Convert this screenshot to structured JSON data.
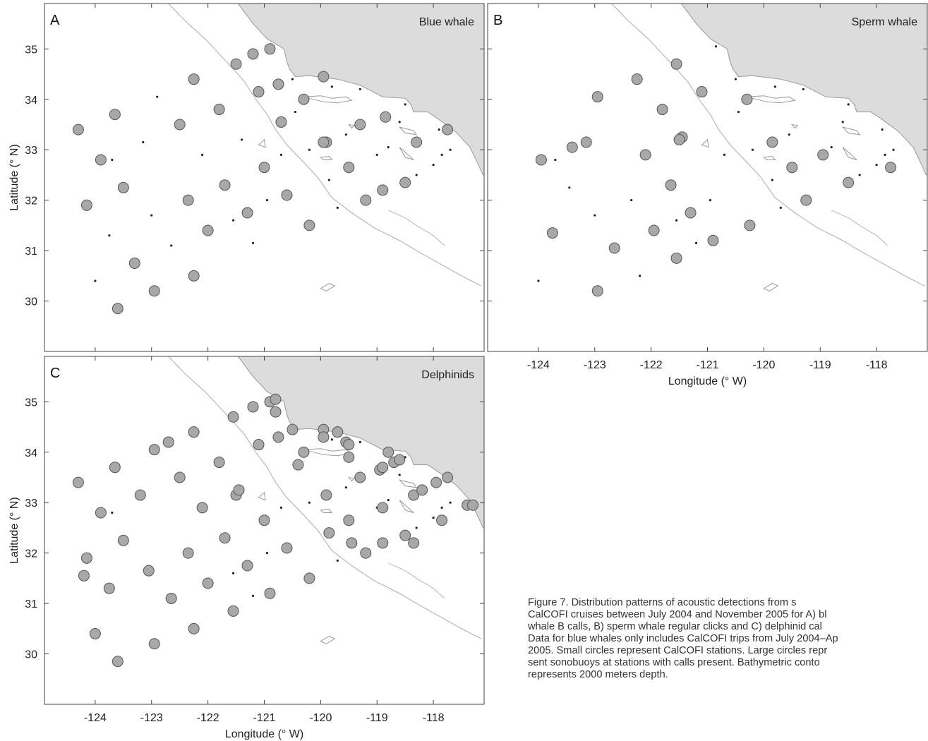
{
  "figure": {
    "caption_lines": [
      "Figure 7.   Distribution patterns of acoustic detections from s",
      "CalCOFI cruises between July 2004 and November 2005 for A) bl",
      "whale B calls, B) sperm whale regular clicks and C) delphinid cal",
      "Data for blue whales only includes CalCOFI trips from July 2004–Ap",
      "2005. Small circles represent CalCOFI stations. Large circles repr",
      "sent sonobuoys at stations with calls present. Bathymetric conto",
      "represents 2000 meters depth."
    ]
  },
  "axes": {
    "lon_range": [
      -124.9,
      -117.1
    ],
    "lat_range": [
      29.0,
      35.9
    ],
    "lon_ticks": [
      -124,
      -123,
      -122,
      -121,
      -120,
      -119,
      -118
    ],
    "lat_ticks": [
      30,
      31,
      32,
      33,
      34,
      35
    ],
    "xlabel": "Longitude (° W)",
    "ylabel": "Latitude (° N)"
  },
  "colors": {
    "land": "#dcdcdc",
    "coast": "#9a9a9a",
    "contour": "#b8b8b8",
    "detection_fill": "#a8a8a8",
    "detection_stroke": "#555555",
    "station": "#222222"
  },
  "stations": [
    [
      -124.0,
      30.4
    ],
    [
      -123.75,
      31.3
    ],
    [
      -123.45,
      32.25
    ],
    [
      -123.15,
      33.15
    ],
    [
      -122.9,
      34.05
    ],
    [
      -122.65,
      31.1
    ],
    [
      -122.35,
      32.0
    ],
    [
      -122.1,
      32.9
    ],
    [
      -121.8,
      33.8
    ],
    [
      -121.2,
      31.15
    ],
    [
      -120.95,
      32.0
    ],
    [
      -120.7,
      32.9
    ],
    [
      -120.45,
      33.75
    ],
    [
      -119.85,
      32.4
    ],
    [
      -119.55,
      33.3
    ],
    [
      -119.0,
      32.9
    ],
    [
      -118.6,
      33.55
    ],
    [
      -118.3,
      32.5
    ],
    [
      -118.0,
      32.7
    ],
    [
      -117.7,
      33.0
    ],
    [
      -117.9,
      33.4
    ],
    [
      -120.5,
      34.4
    ],
    [
      -119.8,
      34.25
    ],
    [
      -119.3,
      34.2
    ],
    [
      -118.5,
      33.9
    ],
    [
      -121.55,
      31.6
    ],
    [
      -122.2,
      30.5
    ],
    [
      -119.7,
      31.85
    ],
    [
      -120.85,
      35.05
    ],
    [
      -123.0,
      31.7
    ],
    [
      -123.7,
      32.8
    ],
    [
      -121.4,
      33.2
    ],
    [
      -118.8,
      33.05
    ],
    [
      -120.2,
      33.0
    ],
    [
      -117.85,
      32.9
    ]
  ],
  "panels": [
    {
      "letter": "A",
      "species": "Blue whale",
      "detections": [
        [
          -124.3,
          33.4
        ],
        [
          -124.15,
          31.9
        ],
        [
          -123.9,
          32.8
        ],
        [
          -123.65,
          33.7
        ],
        [
          -123.5,
          32.25
        ],
        [
          -123.6,
          29.85
        ],
        [
          -123.3,
          30.75
        ],
        [
          -122.95,
          30.2
        ],
        [
          -122.5,
          33.5
        ],
        [
          -122.35,
          32.0
        ],
        [
          -122.25,
          34.4
        ],
        [
          -122.25,
          30.5
        ],
        [
          -122.0,
          31.4
        ],
        [
          -121.8,
          33.8
        ],
        [
          -121.7,
          32.3
        ],
        [
          -121.5,
          34.7
        ],
        [
          -121.3,
          31.75
        ],
        [
          -121.2,
          34.9
        ],
        [
          -121.1,
          34.15
        ],
        [
          -121.0,
          32.65
        ],
        [
          -120.9,
          35.0
        ],
        [
          -120.75,
          34.3
        ],
        [
          -120.7,
          33.55
        ],
        [
          -120.6,
          32.1
        ],
        [
          -120.3,
          34.0
        ],
        [
          -120.2,
          31.5
        ],
        [
          -119.95,
          34.45
        ],
        [
          -119.9,
          33.15
        ],
        [
          -119.95,
          33.15
        ],
        [
          -119.5,
          32.65
        ],
        [
          -119.3,
          33.5
        ],
        [
          -119.2,
          32.0
        ],
        [
          -118.9,
          32.2
        ],
        [
          -118.85,
          33.65
        ],
        [
          -118.5,
          32.35
        ],
        [
          -118.3,
          33.15
        ],
        [
          -117.75,
          33.4
        ]
      ]
    },
    {
      "letter": "B",
      "species": "Sperm whale",
      "detections": [
        [
          -123.95,
          32.8
        ],
        [
          -123.75,
          31.35
        ],
        [
          -123.4,
          33.05
        ],
        [
          -123.15,
          33.15
        ],
        [
          -122.95,
          34.05
        ],
        [
          -122.95,
          30.2
        ],
        [
          -122.65,
          31.05
        ],
        [
          -122.25,
          34.4
        ],
        [
          -122.1,
          32.9
        ],
        [
          -121.95,
          31.4
        ],
        [
          -121.8,
          33.8
        ],
        [
          -121.65,
          32.3
        ],
        [
          -121.55,
          34.7
        ],
        [
          -121.55,
          30.85
        ],
        [
          -121.45,
          33.25
        ],
        [
          -121.5,
          33.2
        ],
        [
          -121.3,
          31.75
        ],
        [
          -121.1,
          34.15
        ],
        [
          -120.9,
          31.2
        ],
        [
          -120.3,
          34.0
        ],
        [
          -120.25,
          31.5
        ],
        [
          -119.85,
          33.15
        ],
        [
          -119.5,
          32.65
        ],
        [
          -119.25,
          32.0
        ],
        [
          -118.95,
          32.9
        ],
        [
          -118.5,
          32.35
        ],
        [
          -117.75,
          32.65
        ]
      ]
    },
    {
      "letter": "C",
      "species": "Delphinids",
      "detections": [
        [
          -124.3,
          33.4
        ],
        [
          -124.2,
          31.55
        ],
        [
          -124.15,
          31.9
        ],
        [
          -124.0,
          30.4
        ],
        [
          -123.9,
          32.8
        ],
        [
          -123.75,
          31.3
        ],
        [
          -123.65,
          33.7
        ],
        [
          -123.6,
          29.85
        ],
        [
          -123.5,
          32.25
        ],
        [
          -123.2,
          33.15
        ],
        [
          -123.05,
          31.65
        ],
        [
          -122.95,
          34.05
        ],
        [
          -122.95,
          30.2
        ],
        [
          -122.7,
          34.2
        ],
        [
          -122.65,
          31.1
        ],
        [
          -122.5,
          33.5
        ],
        [
          -122.35,
          32.0
        ],
        [
          -122.25,
          34.4
        ],
        [
          -122.25,
          30.5
        ],
        [
          -122.1,
          32.9
        ],
        [
          -122.0,
          31.4
        ],
        [
          -121.8,
          33.8
        ],
        [
          -121.7,
          32.3
        ],
        [
          -121.55,
          34.7
        ],
        [
          -121.55,
          30.85
        ],
        [
          -121.5,
          33.15
        ],
        [
          -121.45,
          33.25
        ],
        [
          -121.3,
          31.75
        ],
        [
          -121.2,
          34.9
        ],
        [
          -121.1,
          34.15
        ],
        [
          -121.0,
          32.65
        ],
        [
          -120.9,
          35.0
        ],
        [
          -120.9,
          31.2
        ],
        [
          -120.8,
          35.05
        ],
        [
          -120.8,
          34.8
        ],
        [
          -120.75,
          34.3
        ],
        [
          -120.6,
          32.1
        ],
        [
          -120.5,
          34.45
        ],
        [
          -120.4,
          33.75
        ],
        [
          -120.3,
          34.0
        ],
        [
          -120.2,
          31.5
        ],
        [
          -119.95,
          34.45
        ],
        [
          -119.95,
          34.3
        ],
        [
          -119.9,
          33.15
        ],
        [
          -119.85,
          32.4
        ],
        [
          -119.7,
          34.4
        ],
        [
          -119.55,
          34.2
        ],
        [
          -119.5,
          34.15
        ],
        [
          -119.5,
          33.9
        ],
        [
          -119.5,
          32.65
        ],
        [
          -119.45,
          32.2
        ],
        [
          -119.3,
          33.5
        ],
        [
          -119.2,
          32.0
        ],
        [
          -118.95,
          33.65
        ],
        [
          -118.9,
          33.7
        ],
        [
          -118.9,
          32.9
        ],
        [
          -118.9,
          32.2
        ],
        [
          -118.8,
          34.0
        ],
        [
          -118.7,
          33.8
        ],
        [
          -118.6,
          33.85
        ],
        [
          -118.5,
          32.35
        ],
        [
          -118.35,
          33.15
        ],
        [
          -118.35,
          32.2
        ],
        [
          -118.2,
          33.25
        ],
        [
          -117.95,
          33.4
        ],
        [
          -117.85,
          32.65
        ],
        [
          -117.75,
          33.5
        ],
        [
          -117.4,
          32.95
        ],
        [
          -117.3,
          32.95
        ]
      ]
    }
  ]
}
